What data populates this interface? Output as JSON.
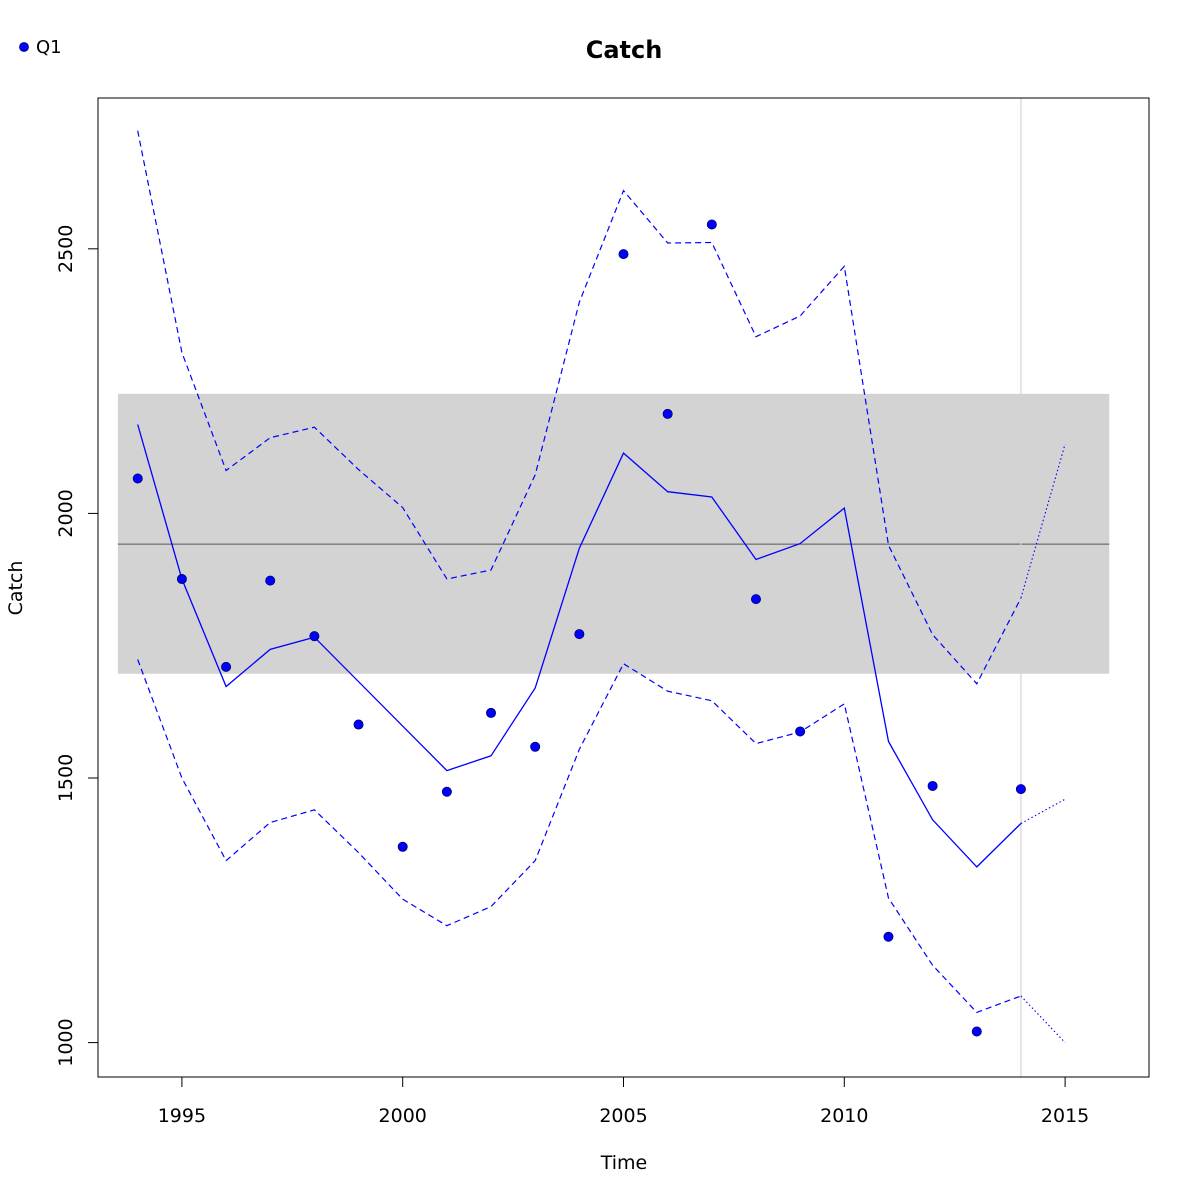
{
  "chart_data": {
    "type": "line",
    "title": "Catch",
    "xlabel": "Time",
    "ylabel": "Catch",
    "xlim": [
      1993.1,
      2016.9
    ],
    "ylim": [
      935,
      2785
    ],
    "x_ticks": [
      1995,
      2000,
      2005,
      2010,
      2015
    ],
    "y_ticks": [
      1000,
      1500,
      2000,
      2500
    ],
    "grid": false,
    "legend_position": "top-left",
    "legend": [
      {
        "label": "Q1",
        "color": "#0000ff",
        "marker": "filled-circle"
      }
    ],
    "observed": {
      "name": "Q1",
      "color": "#0000ff",
      "x": [
        1994,
        1995,
        1996,
        1997,
        1998,
        1999,
        2000,
        2001,
        2002,
        2003,
        2004,
        2005,
        2006,
        2007,
        2008,
        2009,
        2010,
        2011,
        2012,
        2013,
        2014
      ],
      "y": [
        2066,
        1876,
        1710,
        1873,
        1768,
        1601,
        1370,
        1474,
        1623,
        1559,
        1772,
        2490,
        2188,
        2546,
        1838,
        1588,
        null,
        1200,
        1485,
        1021,
        1479
      ]
    },
    "fitted": {
      "color": "#0000ff",
      "style": "solid",
      "x": [
        1994,
        1995,
        1996,
        1997,
        1998,
        2001,
        2002,
        2003,
        2004,
        2005,
        2006,
        2007,
        2008,
        2009,
        2010,
        2011,
        2012,
        2013,
        2014
      ],
      "y": [
        2168,
        1876,
        1673,
        1743,
        1766,
        1514,
        1542,
        1670,
        1934,
        2114,
        2041,
        2031,
        1913,
        1943,
        2010,
        1569,
        1421,
        1332,
        1414
      ]
    },
    "upper_band": {
      "color": "#0000ff",
      "style": "dashed",
      "x": [
        1994,
        1995,
        1996,
        1997,
        1998,
        1999,
        2000,
        2001,
        2002,
        2003,
        2004,
        2005,
        2006,
        2007,
        2008,
        2009,
        2010,
        2011,
        2012,
        2013,
        2014
      ],
      "y": [
        2723,
        2304,
        2081,
        2143,
        2163,
        2083,
        2011,
        1876,
        1893,
        2073,
        2399,
        2610,
        2511,
        2512,
        2334,
        2373,
        2467,
        1940,
        1771,
        1678,
        1840
      ]
    },
    "lower_band": {
      "color": "#0000ff",
      "style": "dashed",
      "x": [
        1994,
        1995,
        1996,
        1997,
        1998,
        1999,
        2000,
        2001,
        2002,
        2003,
        2004,
        2005,
        2006,
        2007,
        2008,
        2009,
        2010,
        2011,
        2012,
        2013,
        2014
      ],
      "y": [
        1724,
        1500,
        1344,
        1416,
        1440,
        1359,
        1271,
        1221,
        1257,
        1344,
        1554,
        1716,
        1664,
        1646,
        1565,
        1587,
        1640,
        1273,
        1146,
        1057,
        1088
      ]
    },
    "forecast": {
      "color": "#0000ff",
      "style": "dotted",
      "x": [
        2014,
        2015
      ],
      "mean": [
        1414,
        1460
      ],
      "upper": [
        1840,
        2131
      ],
      "lower": [
        1088,
        1000
      ]
    },
    "reference_band": {
      "color": "#d3d3d3",
      "x": [
        1993.55,
        2016.0
      ],
      "y": [
        1697,
        2226
      ]
    },
    "reference_line": {
      "color": "#555555",
      "y": 1942
    },
    "vertical_marker": {
      "color": "#d3d3d3",
      "x": 2014
    }
  }
}
